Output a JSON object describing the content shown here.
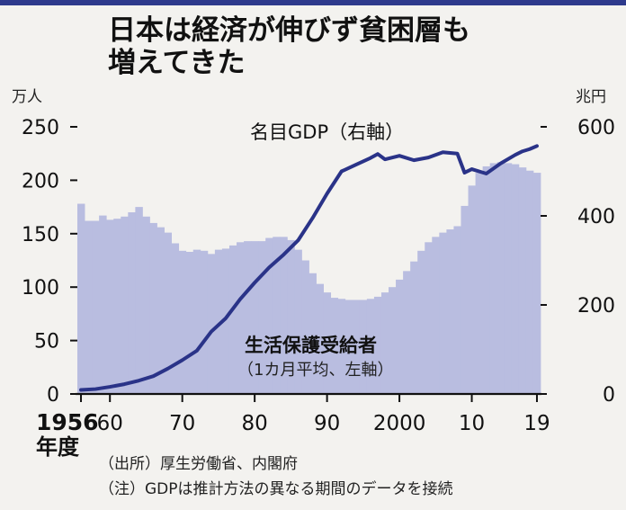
{
  "title_line1": "日本は経済が伸びず貧困層も",
  "title_line2": "増えてきた",
  "left_unit": "万人",
  "right_unit": "兆円",
  "x_first_label": "1956",
  "x_year_label": "年度",
  "notes": {
    "source": "（出所）厚生労働省、内閣府",
    "caution": "（注）GDPは推計方法の異なる期間のデータを接続"
  },
  "colors": {
    "bars": "#b9bde0",
    "line": "#2a3388",
    "axis": "#111111",
    "topbar": "#2e3a8c"
  },
  "chart_data": {
    "type": "bar+line",
    "title": "日本は経済が伸びず貧困層も増えてきた",
    "x": {
      "min": 1956,
      "max": 2019,
      "ticks": [
        {
          "value": 1956,
          "label": "1956"
        },
        {
          "value": 1960,
          "label": "60"
        },
        {
          "value": 1970,
          "label": "70"
        },
        {
          "value": 1980,
          "label": "80"
        },
        {
          "value": 1990,
          "label": "90"
        },
        {
          "value": 2000,
          "label": "2000"
        },
        {
          "value": 2010,
          "label": "10"
        },
        {
          "value": 2019,
          "label": "19"
        }
      ]
    },
    "y_left": {
      "unit": "万人",
      "min": 0,
      "max": 250,
      "ticks": [
        0,
        50,
        100,
        150,
        200,
        250
      ]
    },
    "y_right": {
      "unit": "兆円",
      "min": 0,
      "max": 600,
      "ticks": [
        0,
        200,
        400,
        600
      ]
    },
    "series": [
      {
        "name": "生活保護受給者",
        "note": "（1カ月平均、左軸）",
        "type": "bar",
        "axis": "left",
        "years": [
          1956,
          1957,
          1958,
          1959,
          1960,
          1961,
          1962,
          1963,
          1964,
          1965,
          1966,
          1967,
          1968,
          1969,
          1970,
          1971,
          1972,
          1973,
          1974,
          1975,
          1976,
          1977,
          1978,
          1979,
          1980,
          1981,
          1982,
          1983,
          1984,
          1985,
          1986,
          1987,
          1988,
          1989,
          1990,
          1991,
          1992,
          1993,
          1994,
          1995,
          1996,
          1997,
          1998,
          1999,
          2000,
          2001,
          2002,
          2003,
          2004,
          2005,
          2006,
          2007,
          2008,
          2009,
          2010,
          2011,
          2012,
          2013,
          2014,
          2015,
          2016,
          2017,
          2018,
          2019
        ],
        "values": [
          178,
          162,
          162,
          167,
          163,
          164,
          166,
          170,
          175,
          166,
          160,
          156,
          151,
          141,
          134,
          133,
          135,
          134,
          131,
          135,
          136,
          139,
          142,
          143,
          143,
          143,
          146,
          147,
          147,
          144,
          135,
          125,
          113,
          103,
          95,
          90,
          89,
          88,
          88,
          88,
          89,
          91,
          95,
          100,
          107,
          115,
          124,
          134,
          142,
          147,
          151,
          154,
          157,
          176,
          195,
          207,
          213,
          216,
          217,
          216,
          215,
          212,
          209,
          207
        ]
      },
      {
        "name": "名目GDP",
        "note": "（右軸）",
        "type": "line",
        "axis": "right",
        "years": [
          1956,
          1958,
          1960,
          1962,
          1964,
          1966,
          1968,
          1970,
          1972,
          1974,
          1976,
          1978,
          1980,
          1982,
          1984,
          1986,
          1988,
          1990,
          1992,
          1994,
          1996,
          1997,
          1998,
          2000,
          2002,
          2004,
          2006,
          2008,
          2009,
          2010,
          2012,
          2014,
          2016,
          2017,
          2018,
          2019
        ],
        "values": [
          9,
          11,
          16,
          22,
          30,
          40,
          57,
          76,
          97,
          140,
          170,
          213,
          250,
          284,
          313,
          345,
          395,
          450,
          500,
          515,
          530,
          539,
          527,
          535,
          525,
          531,
          543,
          540,
          497,
          505,
          495,
          518,
          537,
          545,
          550,
          557
        ]
      }
    ]
  }
}
